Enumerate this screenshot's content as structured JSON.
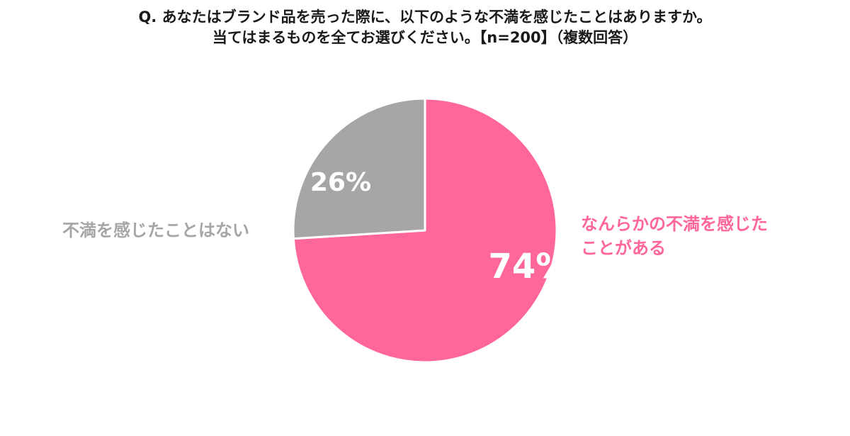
{
  "chart_data": {
    "type": "pie",
    "title_line1": "Q. あなたはブランド品を売った際に、以下のような不満を感じたことはありますか。",
    "title_line2": "当てはまるものを全てお選びください。【n=200】（複数回答）",
    "slices": [
      {
        "label_line1": "なんらかの不満を感じた",
        "label_line2": "ことがある",
        "value": 74,
        "value_label": "74%",
        "color": "#ff6699"
      },
      {
        "label_line1": "不満を感じたことはない",
        "value": 26,
        "value_label": "26%",
        "color": "#a6a6a6"
      }
    ],
    "start": "12 o'clock",
    "direction": "clockwise"
  }
}
